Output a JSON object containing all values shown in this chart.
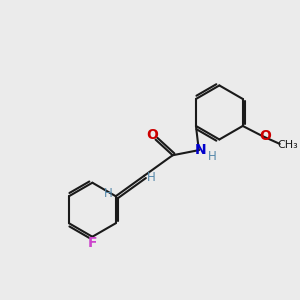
{
  "bg_color": "#ebebeb",
  "bond_color": "#1a1a1a",
  "bond_width": 1.5,
  "atom_colors": {
    "N": "#0000cc",
    "O": "#cc0000",
    "F": "#cc44cc",
    "H": "#5588aa",
    "C": "#1a1a1a"
  },
  "font_size_atoms": 10,
  "font_size_H": 8.5,
  "font_size_methyl": 8
}
